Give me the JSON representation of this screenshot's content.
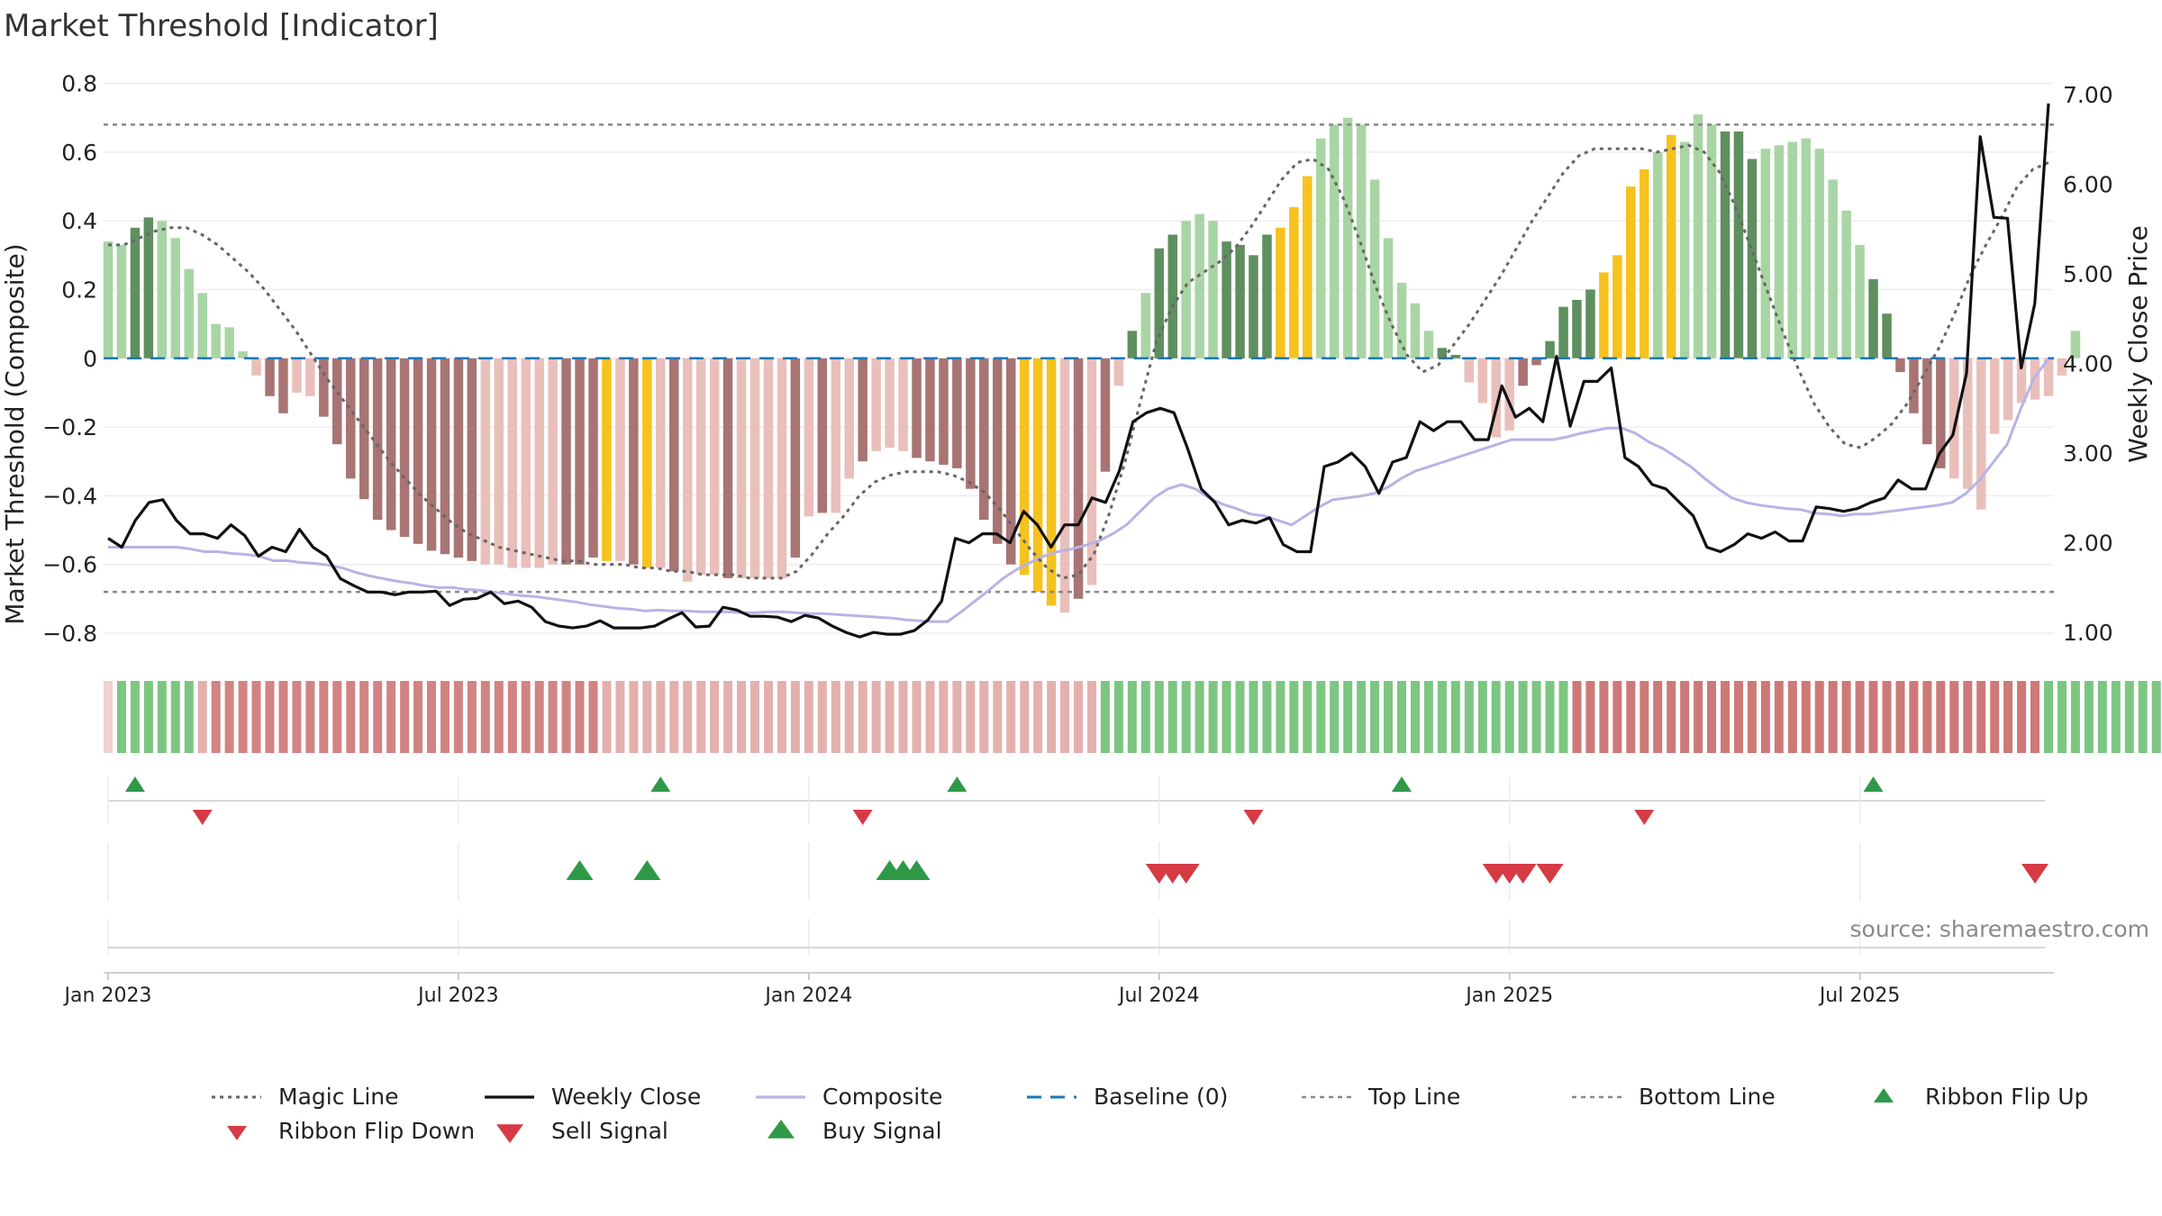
{
  "title": "Market Threshold [Indicator]",
  "source": "source: sharemaestro.com",
  "colors": {
    "strong_green": "#5f8f5f",
    "light_green": "#a9d5a4",
    "strong_red": "#a87474",
    "light_red": "#e9bfbb",
    "gold": "#f6c21e",
    "magic": "#666666",
    "close": "#111111",
    "composite": "#b8b3e6",
    "baseline": "#1f77b4",
    "threshold": "#888888",
    "buy": "#2e9a48",
    "sell": "#d63a45"
  },
  "chart_data": {
    "type": "bar",
    "title": "Market Threshold [Indicator]",
    "ylabel": "Market Threshold (Composite)",
    "y2label": "Weekly Close Price",
    "ylim": [
      -0.85,
      0.82
    ],
    "y2lim": [
      0.8,
      7.2
    ],
    "yticks": [
      0.8,
      0.6,
      0.4,
      0.2,
      0,
      -0.2,
      -0.4,
      -0.6,
      -0.8
    ],
    "ytick_labels": [
      "0.8",
      "0.6",
      "0.4",
      "0.2",
      "0",
      "−0.2",
      "−0.4",
      "−0.6",
      "−0.8"
    ],
    "y2ticks": [
      7,
      6,
      5,
      4,
      3,
      2,
      1
    ],
    "y2tick_labels": [
      "7.00",
      "6.00",
      "5.00",
      "4.00",
      "3.00",
      "2.00",
      "1.00"
    ],
    "xticks": [
      {
        "week": 1,
        "label": "Jan 2023"
      },
      {
        "week": 27,
        "label": "Jul 2023"
      },
      {
        "week": 53,
        "label": "Jan 2024"
      },
      {
        "week": 79,
        "label": "Jul 2024"
      },
      {
        "week": 105,
        "label": "Jan 2025"
      },
      {
        "week": 131,
        "label": "Jul 2025"
      }
    ],
    "n_weeks": 145,
    "top_line": 0.68,
    "bottom_line": -0.68,
    "bar_values": [
      0.34,
      0.33,
      0.38,
      0.41,
      0.4,
      0.35,
      0.26,
      0.19,
      0.1,
      0.09,
      0.02,
      -0.05,
      -0.11,
      -0.16,
      -0.1,
      -0.11,
      -0.17,
      -0.25,
      -0.35,
      -0.41,
      -0.47,
      -0.5,
      -0.52,
      -0.54,
      -0.56,
      -0.57,
      -0.58,
      -0.59,
      -0.6,
      -0.6,
      -0.61,
      -0.61,
      -0.61,
      -0.6,
      -0.6,
      -0.6,
      -0.58,
      -0.59,
      -0.59,
      -0.6,
      -0.61,
      -0.61,
      -0.62,
      -0.65,
      -0.63,
      -0.63,
      -0.64,
      -0.64,
      -0.64,
      -0.64,
      -0.64,
      -0.58,
      -0.46,
      -0.45,
      -0.45,
      -0.35,
      -0.3,
      -0.27,
      -0.26,
      -0.27,
      -0.29,
      -0.3,
      -0.31,
      -0.32,
      -0.38,
      -0.47,
      -0.54,
      -0.6,
      -0.63,
      -0.68,
      -0.72,
      -0.74,
      -0.7,
      -0.66,
      -0.33,
      -0.08,
      0.08,
      0.19,
      0.32,
      0.36,
      0.4,
      0.42,
      0.4,
      0.34,
      0.33,
      0.3,
      0.36,
      0.38,
      0.44,
      0.53,
      0.64,
      0.68,
      0.7,
      0.68,
      0.52,
      0.35,
      0.22,
      0.16,
      0.08,
      0.03,
      0.01,
      -0.07,
      -0.13,
      -0.23,
      -0.21,
      -0.08,
      -0.02,
      0.05,
      0.15,
      0.17,
      0.2,
      0.25,
      0.3,
      0.5,
      0.55,
      0.6,
      0.65,
      0.63,
      0.71,
      0.68,
      0.66,
      0.66,
      0.58,
      0.61,
      0.62,
      0.63,
      0.64,
      0.61,
      0.52,
      0.43,
      0.33,
      0.23,
      0.13,
      -0.04,
      -0.16,
      -0.25,
      -0.32,
      -0.35,
      -0.38,
      -0.44,
      -0.22,
      -0.18,
      -0.13,
      -0.12,
      -0.11,
      -0.05,
      0.08
    ],
    "bar_class": [
      "L",
      "L",
      "S",
      "S",
      "L",
      "L",
      "L",
      "L",
      "L",
      "L",
      "L",
      "L",
      "S",
      "S",
      "L",
      "L",
      "S",
      "S",
      "S",
      "S",
      "S",
      "S",
      "S",
      "S",
      "S",
      "S",
      "S",
      "S",
      "L",
      "L",
      "L",
      "L",
      "L",
      "L",
      "S",
      "S",
      "S",
      "G",
      "L",
      "S",
      "G",
      "L",
      "S",
      "L",
      "L",
      "L",
      "S",
      "L",
      "L",
      "L",
      "L",
      "S",
      "L",
      "S",
      "L",
      "L",
      "S",
      "L",
      "L",
      "L",
      "S",
      "S",
      "S",
      "S",
      "S",
      "S",
      "S",
      "S",
      "G",
      "G",
      "G",
      "L",
      "S",
      "L",
      "S",
      "L",
      "S",
      "L",
      "S",
      "S",
      "L",
      "L",
      "L",
      "S",
      "S",
      "S",
      "S",
      "G",
      "G",
      "G",
      "L",
      "L",
      "L",
      "L",
      "L",
      "L",
      "L",
      "L",
      "L",
      "S",
      "S",
      "L",
      "L",
      "L",
      "L",
      "S",
      "S",
      "S",
      "S",
      "S",
      "S",
      "G",
      "G",
      "G",
      "G",
      "L",
      "G",
      "L",
      "L",
      "L",
      "S",
      "S",
      "S",
      "L",
      "L",
      "L",
      "L",
      "L",
      "L",
      "L",
      "L",
      "S",
      "S",
      "S",
      "S",
      "S",
      "S",
      "L",
      "L",
      "L",
      "L",
      "L",
      "L",
      "L",
      "L"
    ],
    "series": [
      {
        "name": "Magic Line",
        "axis": "left",
        "values": [
          0.33,
          0.33,
          0.35,
          0.37,
          0.38,
          0.38,
          0.36,
          0.33,
          0.29,
          0.25,
          0.2,
          0.14,
          0.08,
          0.01,
          -0.06,
          -0.12,
          -0.18,
          -0.24,
          -0.3,
          -0.35,
          -0.4,
          -0.44,
          -0.48,
          -0.51,
          -0.53,
          -0.55,
          -0.56,
          -0.57,
          -0.58,
          -0.59,
          -0.59,
          -0.6,
          -0.6,
          -0.6,
          -0.61,
          -0.61,
          -0.62,
          -0.62,
          -0.63,
          -0.63,
          -0.63,
          -0.64,
          -0.64,
          -0.64,
          -0.62,
          -0.57,
          -0.51,
          -0.46,
          -0.4,
          -0.36,
          -0.34,
          -0.33,
          -0.33,
          -0.33,
          -0.34,
          -0.36,
          -0.39,
          -0.44,
          -0.5,
          -0.56,
          -0.61,
          -0.64,
          -0.63,
          -0.57,
          -0.45,
          -0.3,
          -0.12,
          0.05,
          0.15,
          0.22,
          0.25,
          0.28,
          0.32,
          0.38,
          0.45,
          0.52,
          0.57,
          0.58,
          0.55,
          0.46,
          0.34,
          0.21,
          0.1,
          0.01,
          -0.04,
          -0.02,
          0.04,
          0.1,
          0.17,
          0.24,
          0.32,
          0.4,
          0.47,
          0.54,
          0.59,
          0.61,
          0.61,
          0.61,
          0.61,
          0.6,
          0.61,
          0.62,
          0.6,
          0.54,
          0.44,
          0.32,
          0.2,
          0.08,
          -0.03,
          -0.13,
          -0.2,
          -0.25,
          -0.26,
          -0.23,
          -0.19,
          -0.13,
          -0.05,
          0.03,
          0.13,
          0.24,
          0.33,
          0.41,
          0.5,
          0.55,
          0.57
        ]
      },
      {
        "name": "Weekly Close",
        "axis": "right",
        "values": [
          2.05,
          1.95,
          2.25,
          2.45,
          2.48,
          2.25,
          2.1,
          2.1,
          2.05,
          2.2,
          2.08,
          1.85,
          1.95,
          1.9,
          2.15,
          1.95,
          1.85,
          1.6,
          1.52,
          1.45,
          1.45,
          1.42,
          1.45,
          1.45,
          1.46,
          1.3,
          1.37,
          1.38,
          1.45,
          1.32,
          1.35,
          1.28,
          1.12,
          1.07,
          1.05,
          1.07,
          1.13,
          1.05,
          1.05,
          1.05,
          1.07,
          1.15,
          1.22,
          1.06,
          1.07,
          1.28,
          1.25,
          1.18,
          1.18,
          1.17,
          1.12,
          1.19,
          1.16,
          1.07,
          1.0,
          0.95,
          1.0,
          0.98,
          0.98,
          1.02,
          1.14,
          1.35,
          2.05,
          2.0,
          2.1,
          2.1,
          2.0,
          2.35,
          2.2,
          1.95,
          2.2,
          2.2,
          2.5,
          2.45,
          2.8,
          3.35,
          3.45,
          3.5,
          3.45,
          3.05,
          2.6,
          2.45,
          2.2,
          2.25,
          2.22,
          2.28,
          1.98,
          1.9,
          1.9,
          2.85,
          2.9,
          3.0,
          2.85,
          2.55,
          2.9,
          2.95,
          3.35,
          3.25,
          3.35,
          3.35,
          3.15,
          3.15,
          3.75,
          3.4,
          3.5,
          3.35,
          4.08,
          3.3,
          3.8,
          3.8,
          3.95,
          2.95,
          2.85,
          2.65,
          2.6,
          2.45,
          2.3,
          1.95,
          1.9,
          1.98,
          2.1,
          2.05,
          2.12,
          2.02,
          2.02,
          2.4,
          2.38,
          2.35,
          2.38,
          2.45,
          2.5,
          2.7,
          2.6,
          2.6,
          2.99,
          3.2,
          3.89,
          6.53,
          5.63,
          5.62,
          3.95,
          4.67,
          6.9
        ]
      },
      {
        "name": "Composite",
        "axis": "right",
        "values": [
          1.95,
          1.95,
          1.95,
          1.95,
          1.95,
          1.95,
          1.93,
          1.9,
          1.9,
          1.88,
          1.87,
          1.85,
          1.8,
          1.8,
          1.78,
          1.77,
          1.75,
          1.72,
          1.67,
          1.63,
          1.6,
          1.57,
          1.55,
          1.52,
          1.5,
          1.5,
          1.48,
          1.47,
          1.45,
          1.43,
          1.41,
          1.4,
          1.38,
          1.36,
          1.34,
          1.31,
          1.29,
          1.27,
          1.26,
          1.24,
          1.25,
          1.24,
          1.24,
          1.23,
          1.23,
          1.23,
          1.22,
          1.22,
          1.23,
          1.23,
          1.22,
          1.21,
          1.21,
          1.2,
          1.19,
          1.18,
          1.17,
          1.16,
          1.14,
          1.13,
          1.12,
          1.12,
          1.23,
          1.35,
          1.47,
          1.6,
          1.7,
          1.78,
          1.85,
          1.9,
          1.93,
          1.97,
          2.02,
          2.1,
          2.2,
          2.35,
          2.5,
          2.6,
          2.65,
          2.6,
          2.5,
          2.43,
          2.38,
          2.32,
          2.3,
          2.25,
          2.2,
          2.3,
          2.4,
          2.48,
          2.5,
          2.52,
          2.55,
          2.62,
          2.72,
          2.8,
          2.85,
          2.9,
          2.95,
          3.0,
          3.05,
          3.1,
          3.15,
          3.15,
          3.15,
          3.15,
          3.18,
          3.22,
          3.25,
          3.28,
          3.28,
          3.22,
          3.12,
          3.05,
          2.95,
          2.85,
          2.72,
          2.6,
          2.5,
          2.45,
          2.42,
          2.4,
          2.38,
          2.37,
          2.33,
          2.32,
          2.3,
          2.32,
          2.32,
          2.34,
          2.36,
          2.38,
          2.4,
          2.42,
          2.45,
          2.55,
          2.7,
          2.9,
          3.1,
          3.5,
          3.85,
          4.05
        ]
      },
      {
        "name": "Baseline (0)",
        "axis": "left",
        "values": [
          0,
          0
        ]
      },
      {
        "name": "Top Line",
        "axis": "left",
        "values": [
          0.68,
          0.68
        ]
      },
      {
        "name": "Bottom Line",
        "axis": "left",
        "values": [
          -0.68,
          -0.68
        ]
      }
    ],
    "ribbon_values": [
      -0.05,
      0.3,
      0.3,
      0.3,
      0.3,
      0.3,
      0.3,
      -0.2,
      -0.4,
      -0.4,
      -0.4,
      -0.4,
      -0.4,
      -0.4,
      -0.4,
      -0.4,
      -0.4,
      -0.4,
      -0.4,
      -0.4,
      -0.4,
      -0.4,
      -0.4,
      -0.4,
      -0.4,
      -0.4,
      -0.4,
      -0.4,
      -0.4,
      -0.4,
      -0.4,
      -0.4,
      -0.4,
      -0.4,
      -0.4,
      -0.4,
      -0.4,
      -0.2,
      -0.2,
      -0.2,
      -0.2,
      -0.2,
      -0.2,
      -0.2,
      -0.2,
      -0.2,
      -0.2,
      -0.2,
      -0.2,
      -0.2,
      -0.2,
      -0.2,
      -0.2,
      -0.2,
      -0.2,
      -0.2,
      -0.2,
      -0.2,
      -0.2,
      -0.2,
      -0.2,
      -0.2,
      -0.2,
      -0.2,
      -0.2,
      -0.2,
      -0.2,
      -0.2,
      -0.2,
      -0.2,
      -0.2,
      -0.2,
      -0.2,
      -0.2,
      0.3,
      0.3,
      0.3,
      0.3,
      0.3,
      0.3,
      0.3,
      0.3,
      0.3,
      0.3,
      0.3,
      0.3,
      0.3,
      0.3,
      0.3,
      0.3,
      0.3,
      0.3,
      0.3,
      0.3,
      0.3,
      0.3,
      0.3,
      0.3,
      0.3,
      0.3,
      0.3,
      0.3,
      0.3,
      0.3,
      0.3,
      0.3,
      0.3,
      0.3,
      0.3,
      -0.45,
      -0.45,
      -0.45,
      -0.45,
      -0.45,
      -0.45,
      -0.45,
      -0.45,
      -0.45,
      -0.45,
      -0.45,
      -0.45,
      -0.45,
      -0.45,
      -0.45,
      -0.45,
      -0.45,
      -0.45,
      -0.45,
      -0.45,
      -0.45,
      -0.45,
      -0.45,
      -0.45,
      -0.45,
      -0.45,
      -0.45,
      -0.45,
      -0.45,
      -0.45,
      -0.45,
      -0.45,
      -0.45,
      -0.45,
      -0.45,
      0.3,
      0.3,
      0.3,
      0.3,
      0.3,
      0.3,
      0.3,
      0.3,
      0.3,
      0.3,
      0.3,
      0.3,
      0.3,
      0.3,
      0.3
    ],
    "ribbon_flip_up_weeks": [
      3,
      42,
      64,
      97,
      132
    ],
    "ribbon_flip_down_weeks": [
      8,
      57,
      86,
      115
    ],
    "buy_signal_weeks": [
      36,
      41,
      59,
      60,
      61
    ],
    "sell_signal_weeks": [
      79,
      80,
      81,
      104,
      105,
      106,
      108,
      144
    ],
    "legend": [
      {
        "label": "Magic Line",
        "kind": "dotted",
        "color": "#666666"
      },
      {
        "label": "Weekly Close",
        "kind": "solid",
        "color": "#111111"
      },
      {
        "label": "Composite",
        "kind": "solid",
        "color": "#b8b3e6"
      },
      {
        "label": "Baseline (0)",
        "kind": "dashed",
        "color": "#1f77b4"
      },
      {
        "label": "Top Line",
        "kind": "dotted-thin",
        "color": "#888888"
      },
      {
        "label": "Bottom Line",
        "kind": "dotted-thin",
        "color": "#888888"
      },
      {
        "label": "Ribbon Flip Up",
        "kind": "triangle-up-small",
        "color": "#2e9a48"
      },
      {
        "label": "Ribbon Flip Down",
        "kind": "triangle-down-small",
        "color": "#d63a45"
      },
      {
        "label": "Sell Signal",
        "kind": "triangle-down",
        "color": "#d63a45"
      },
      {
        "label": "Buy Signal",
        "kind": "triangle-up",
        "color": "#2e9a48"
      }
    ]
  }
}
